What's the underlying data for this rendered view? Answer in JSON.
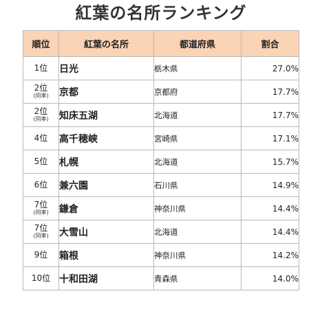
{
  "title": "紅葉の名所ランキング",
  "table": {
    "headers": {
      "rank": "順位",
      "spot": "紅葉の名所",
      "prefecture": "都道府県",
      "ratio": "割合"
    },
    "rows": [
      {
        "rank": "1位",
        "note": "",
        "spot": "日光",
        "prefecture": "栃木県",
        "ratio": "27.0%"
      },
      {
        "rank": "2位",
        "note": "(同率)",
        "spot": "京都",
        "prefecture": "京都府",
        "ratio": "17.7%"
      },
      {
        "rank": "2位",
        "note": "(同率)",
        "spot": "知床五湖",
        "prefecture": "北海道",
        "ratio": "17.7%"
      },
      {
        "rank": "4位",
        "note": "",
        "spot": "高千穂峡",
        "prefecture": "宮崎県",
        "ratio": "17.1%"
      },
      {
        "rank": "5位",
        "note": "",
        "spot": "札幌",
        "prefecture": "北海道",
        "ratio": "15.7%"
      },
      {
        "rank": "6位",
        "note": "",
        "spot": "兼六園",
        "prefecture": "石川県",
        "ratio": "14.9%"
      },
      {
        "rank": "7位",
        "note": "(同率)",
        "spot": "鎌倉",
        "prefecture": "神奈川県",
        "ratio": "14.4%"
      },
      {
        "rank": "7位",
        "note": "(同率)",
        "spot": "大雪山",
        "prefecture": "北海道",
        "ratio": "14.4%"
      },
      {
        "rank": "9位",
        "note": "",
        "spot": "箱根",
        "prefecture": "神奈川県",
        "ratio": "14.2%"
      },
      {
        "rank": "10位",
        "note": "",
        "spot": "十和田湖",
        "prefecture": "青森県",
        "ratio": "14.0%"
      }
    ]
  },
  "colors": {
    "header_background": "#fbd3b5",
    "border": "#b8b8b8",
    "text": "#222222"
  }
}
